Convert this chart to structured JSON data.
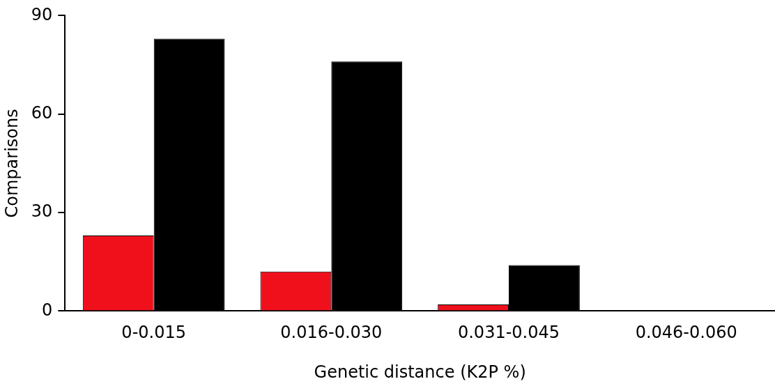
{
  "chart_data": {
    "type": "bar",
    "xlabel": "Genetic distance (K2P %)",
    "ylabel": "Comparisons",
    "categories": [
      "0-0.015",
      "0.016-0.030",
      "0.031-0.045",
      "0.046-0.060"
    ],
    "series": [
      {
        "color": "#f0101c",
        "values": [
          23,
          12,
          2,
          0
        ]
      },
      {
        "color": "#000000",
        "values": [
          83,
          76,
          14,
          0
        ]
      }
    ],
    "ylim": [
      0,
      90
    ],
    "yticks": [
      0,
      30,
      60,
      90
    ],
    "grid": false,
    "legend": false
  }
}
